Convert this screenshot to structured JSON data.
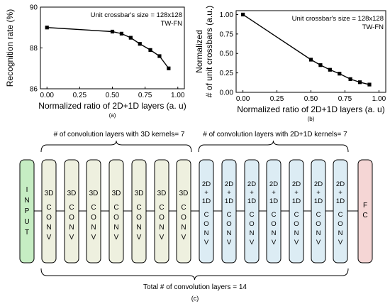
{
  "chart_data": [
    {
      "type": "line",
      "panel_label": "(a)",
      "annotation_lines": [
        "Unit crossbar's size = 128x128",
        "TW-FN"
      ],
      "xlabel": "Normalized ratio of 2D+1D layers (a. u)",
      "ylabel": "Recognition rate (%)",
      "xlim": [
        -0.05,
        1.05
      ],
      "ylim": [
        86,
        90
      ],
      "xticks": [
        "0.00",
        "0.25",
        "0.50",
        "0.75",
        "1.00"
      ],
      "xtick_values": [
        0,
        0.25,
        0.5,
        0.75,
        1.0
      ],
      "yticks": [
        "86",
        "88",
        "90"
      ],
      "ytick_values": [
        86,
        88,
        90
      ],
      "marker": "square",
      "series": [
        {
          "x": [
            0.0,
            0.5,
            0.57,
            0.64,
            0.71,
            0.79,
            0.86,
            0.93
          ],
          "values": [
            89.0,
            88.8,
            88.7,
            88.5,
            88.2,
            87.9,
            87.6,
            87.0
          ]
        }
      ]
    },
    {
      "type": "line",
      "panel_label": "(b)",
      "annotation_lines": [
        "Unit crossbar's size = 128x128",
        "TW-FN"
      ],
      "xlabel": "Normalized ratio of 2D+1D layers (a. u)",
      "ylabel_lines": [
        "Normalized",
        "# of unit crossbars (a.u.)"
      ],
      "xlim": [
        -0.05,
        1.05
      ],
      "ylim": [
        0,
        1.05
      ],
      "xticks": [
        "0.00",
        "0.25",
        "0.50",
        "0.75",
        "1.00"
      ],
      "xtick_values": [
        0,
        0.25,
        0.5,
        0.75,
        1.0
      ],
      "yticks": [
        "0.00",
        "0.25",
        "0.50",
        "0.75",
        "1.00"
      ],
      "ytick_values": [
        0,
        0.25,
        0.5,
        0.75,
        1.0
      ],
      "marker": "square",
      "series": [
        {
          "x": [
            0.0,
            0.5,
            0.57,
            0.64,
            0.71,
            0.79,
            0.86,
            0.93
          ],
          "values": [
            1.0,
            0.42,
            0.35,
            0.29,
            0.24,
            0.17,
            0.13,
            0.1
          ]
        }
      ]
    }
  ],
  "diagram": {
    "label_3d_group": "# of convolution layers with 3D kernels= 7",
    "label_2d1d_group": "# of convolution layers with 2D+1D kernels= 7",
    "label_total": "Total # of convolution layers = 14",
    "panel_label": "(c)",
    "input_label": [
      "I",
      "N",
      "P",
      "U",
      "T"
    ],
    "fc_label": [
      "F",
      "C"
    ],
    "conv3d_blocks": [
      [
        "3D",
        "C",
        "O",
        "N",
        "V"
      ],
      [
        "3D",
        "C",
        "O",
        "N",
        "V"
      ],
      [
        "3D",
        "C",
        "O",
        "N",
        "V"
      ],
      [
        "3D",
        "C",
        "O",
        "N",
        "V"
      ],
      [
        "3D",
        "C",
        "O",
        "N",
        "V"
      ],
      [
        "3D",
        "C",
        "O",
        "N",
        "V"
      ],
      [
        "3D",
        "C",
        "O",
        "N",
        "V"
      ]
    ],
    "conv2d1d_blocks": [
      [
        "2D",
        "+",
        "1D",
        "C",
        "O",
        "N",
        "V"
      ],
      [
        "2D",
        "+",
        "1D",
        "C",
        "O",
        "N",
        "V"
      ],
      [
        "2D",
        "+",
        "1D",
        "C",
        "O",
        "N",
        "V"
      ],
      [
        "2D",
        "+",
        "1D",
        "C",
        "O",
        "N",
        "V"
      ],
      [
        "2D",
        "+",
        "1D",
        "C",
        "O",
        "N",
        "V"
      ],
      [
        "2D",
        "+",
        "1D",
        "C",
        "O",
        "N",
        "V"
      ],
      [
        "2D",
        "+",
        "1D",
        "C",
        "O",
        "N",
        "V"
      ]
    ],
    "colors": {
      "input": "#c6edc3",
      "conv3d": "#eef0df",
      "conv2d1d": "#dcecf4",
      "fc": "#f5d6d5"
    }
  }
}
